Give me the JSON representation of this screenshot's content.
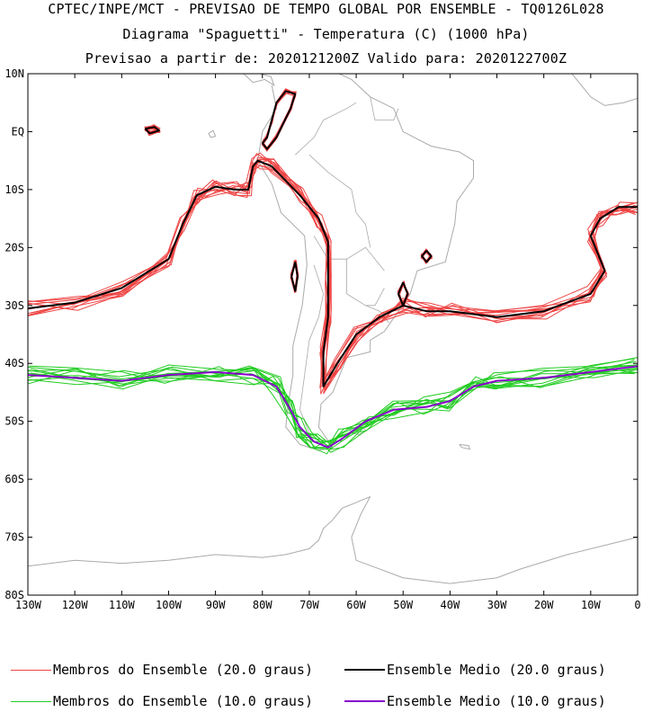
{
  "titles": {
    "line1": "CPTEC/INPE/MCT - PREVISAO DE TEMPO GLOBAL POR ENSEMBLE - TQ0126L028",
    "line2": "Diagrama \"Spaguetti\" - Temperatura (C) (1000 hPa)",
    "line3": "Previsao a partir de: 2020121200Z  Valido para: 2020122700Z"
  },
  "colors": {
    "member20": "#ee4444",
    "mean20": "#000000",
    "member10": "#22cc22",
    "mean10": "#8800cc",
    "coast": "#aaaaaa"
  },
  "chart_data": {
    "type": "line",
    "title": "Diagrama \"Spaguetti\" - Temperatura (C) (1000 hPa)",
    "xlim": [
      -130,
      0
    ],
    "ylim": [
      -80,
      10
    ],
    "x_ticks": [
      {
        "v": -130,
        "label": "130W"
      },
      {
        "v": -120,
        "label": "120W"
      },
      {
        "v": -110,
        "label": "110W"
      },
      {
        "v": -100,
        "label": "100W"
      },
      {
        "v": -90,
        "label": "90W"
      },
      {
        "v": -80,
        "label": "80W"
      },
      {
        "v": -70,
        "label": "70W"
      },
      {
        "v": -60,
        "label": "60W"
      },
      {
        "v": -50,
        "label": "50W"
      },
      {
        "v": -40,
        "label": "40W"
      },
      {
        "v": -30,
        "label": "30W"
      },
      {
        "v": -20,
        "label": "20W"
      },
      {
        "v": -10,
        "label": "10W"
      },
      {
        "v": 0,
        "label": "0"
      }
    ],
    "y_ticks": [
      {
        "v": 10,
        "label": "10N"
      },
      {
        "v": 0,
        "label": "EQ"
      },
      {
        "v": -10,
        "label": "10S"
      },
      {
        "v": -20,
        "label": "20S"
      },
      {
        "v": -30,
        "label": "30S"
      },
      {
        "v": -40,
        "label": "40S"
      },
      {
        "v": -50,
        "label": "50S"
      },
      {
        "v": -60,
        "label": "60S"
      },
      {
        "v": -70,
        "label": "70S"
      },
      {
        "v": -80,
        "label": "80S"
      }
    ],
    "series": [
      {
        "name": "Ensemble Medio (20.0 graus)",
        "kind": "mean20",
        "points": [
          [
            -130,
            -30.5
          ],
          [
            -120,
            -29.5
          ],
          [
            -110,
            -27
          ],
          [
            -100,
            -22
          ],
          [
            -97,
            -16
          ],
          [
            -94,
            -11
          ],
          [
            -90,
            -9.5
          ],
          [
            -86,
            -10
          ],
          [
            -83,
            -10
          ],
          [
            -82,
            -6
          ],
          [
            -81,
            -5
          ],
          [
            -78,
            -6
          ],
          [
            -72,
            -11
          ],
          [
            -68,
            -15
          ],
          [
            -66,
            -19
          ],
          [
            -66,
            -25
          ],
          [
            -66,
            -32
          ],
          [
            -67,
            -38
          ],
          [
            -67,
            -44
          ],
          [
            -64,
            -40
          ],
          [
            -60,
            -35
          ],
          [
            -55,
            -32
          ],
          [
            -50,
            -30
          ],
          [
            -45,
            -31
          ],
          [
            -40,
            -31
          ],
          [
            -30,
            -32
          ],
          [
            -20,
            -31
          ],
          [
            -10,
            -28
          ],
          [
            -7,
            -24
          ],
          [
            -10,
            -18
          ],
          [
            -8,
            -15
          ],
          [
            -4,
            -13
          ],
          [
            0,
            -13
          ]
        ]
      },
      {
        "name": "Ensemble Medio (20.0 graus)",
        "kind": "mean20",
        "points": [
          [
            -80,
            -2
          ],
          [
            -79,
            -1
          ],
          [
            -78,
            2
          ],
          [
            -77,
            5
          ],
          [
            -75,
            7
          ],
          [
            -73,
            6.5
          ],
          [
            -74,
            4
          ],
          [
            -77,
            -1
          ],
          [
            -79,
            -3
          ],
          [
            -80,
            -2
          ]
        ]
      },
      {
        "name": "Ensemble Medio (20.0 graus)",
        "kind": "mean20",
        "points": [
          [
            -73,
            -22.5
          ],
          [
            -72.5,
            -25
          ],
          [
            -73,
            -27.5
          ],
          [
            -73.8,
            -25
          ],
          [
            -73,
            -22.5
          ]
        ]
      },
      {
        "name": "Ensemble Medio (20.0 graus)",
        "kind": "mean20",
        "points": [
          [
            -105,
            0.5
          ],
          [
            -103,
            0.8
          ],
          [
            -102,
            0.2
          ],
          [
            -104,
            -0.3
          ],
          [
            -105,
            0.5
          ]
        ]
      },
      {
        "name": "Ensemble Medio (20.0 graus)",
        "kind": "mean20",
        "points": [
          [
            -45,
            -20.5
          ],
          [
            -44,
            -21.5
          ],
          [
            -45,
            -22.5
          ],
          [
            -46,
            -21.5
          ],
          [
            -45,
            -20.5
          ]
        ]
      },
      {
        "name": "Ensemble Medio (20.0 graus)",
        "kind": "mean20",
        "points": [
          [
            -50,
            -26
          ],
          [
            -49,
            -28
          ],
          [
            -50,
            -30
          ],
          [
            -51,
            -28
          ],
          [
            -50,
            -26
          ]
        ]
      },
      {
        "name": "Ensemble Medio (10.0 graus)",
        "kind": "mean10",
        "points": [
          [
            -130,
            -42
          ],
          [
            -120,
            -42.5
          ],
          [
            -110,
            -43
          ],
          [
            -100,
            -42
          ],
          [
            -90,
            -41.5
          ],
          [
            -82,
            -42
          ],
          [
            -77,
            -44
          ],
          [
            -74,
            -48
          ],
          [
            -72,
            -51
          ],
          [
            -69,
            -53.5
          ],
          [
            -66,
            -54.5
          ],
          [
            -63,
            -53
          ],
          [
            -58,
            -50
          ],
          [
            -52,
            -48
          ],
          [
            -45,
            -47.5
          ],
          [
            -40,
            -46.5
          ],
          [
            -35,
            -44
          ],
          [
            -30,
            -43
          ],
          [
            -20,
            -42.5
          ],
          [
            -10,
            -41.5
          ],
          [
            0,
            -40.5
          ]
        ]
      }
    ]
  },
  "legend": {
    "member20": "Membros do Ensemble (20.0 graus)",
    "mean20": "Ensemble Medio (20.0 graus)",
    "member10": "Membros do Ensemble (10.0 graus)",
    "mean10": "Ensemble Medio (10.0 graus)"
  }
}
